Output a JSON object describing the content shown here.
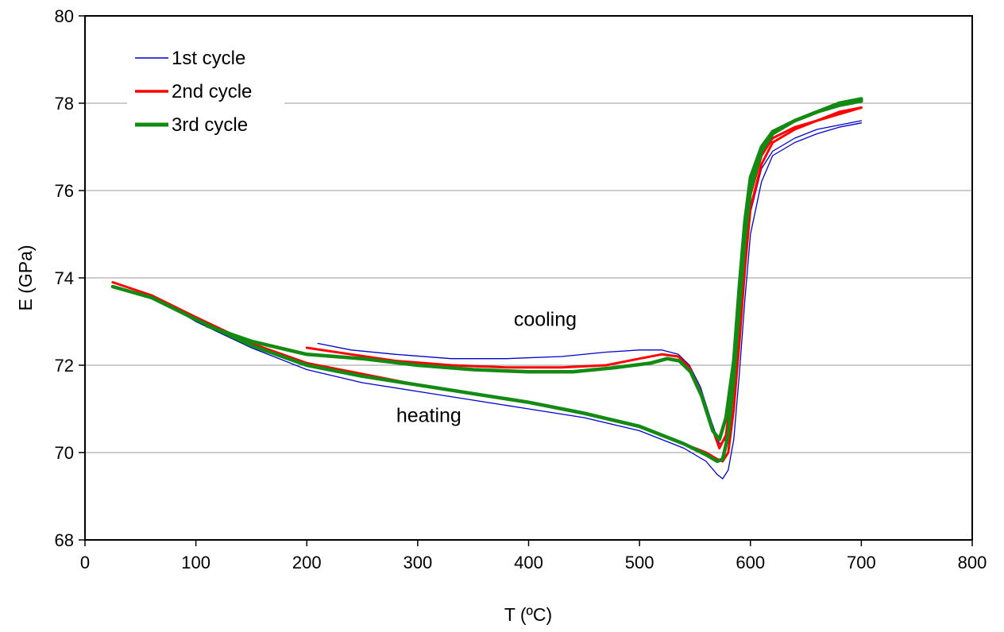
{
  "chart_data": {
    "type": "line",
    "xlabel": "T (ºC)",
    "ylabel": "E (GPa)",
    "xlim": [
      0,
      800
    ],
    "ylim": [
      68,
      80
    ],
    "xticks": [
      0,
      100,
      200,
      300,
      400,
      500,
      600,
      700,
      800
    ],
    "yticks": [
      68,
      70,
      72,
      74,
      76,
      78,
      80
    ],
    "grid": "horizontal",
    "legend_position": "top-left",
    "annotations": [
      {
        "text": "cooling",
        "x": 415,
        "y": 72.9
      },
      {
        "text": "heating",
        "x": 310,
        "y": 70.7
      }
    ],
    "series": [
      {
        "name": "1st cycle",
        "color": "#0000cc",
        "heating": [
          [
            25,
            73.9
          ],
          [
            60,
            73.6
          ],
          [
            100,
            73.0
          ],
          [
            150,
            72.4
          ],
          [
            200,
            71.9
          ],
          [
            250,
            71.6
          ],
          [
            300,
            71.4
          ],
          [
            350,
            71.2
          ],
          [
            400,
            71.0
          ],
          [
            450,
            70.8
          ],
          [
            500,
            70.5
          ],
          [
            540,
            70.1
          ],
          [
            560,
            69.8
          ],
          [
            570,
            69.5
          ],
          [
            575,
            69.4
          ],
          [
            580,
            69.6
          ],
          [
            585,
            70.3
          ],
          [
            590,
            71.8
          ],
          [
            595,
            73.5
          ],
          [
            600,
            75.0
          ],
          [
            610,
            76.2
          ],
          [
            620,
            76.8
          ],
          [
            640,
            77.1
          ],
          [
            660,
            77.3
          ],
          [
            680,
            77.45
          ],
          [
            700,
            77.55
          ]
        ],
        "cooling": [
          [
            700,
            77.6
          ],
          [
            680,
            77.5
          ],
          [
            660,
            77.4
          ],
          [
            640,
            77.2
          ],
          [
            620,
            76.9
          ],
          [
            610,
            76.5
          ],
          [
            600,
            75.5
          ],
          [
            595,
            74.4
          ],
          [
            590,
            72.9
          ],
          [
            585,
            71.5
          ],
          [
            578,
            70.3
          ],
          [
            572,
            70.2
          ],
          [
            565,
            70.7
          ],
          [
            555,
            71.5
          ],
          [
            545,
            72.0
          ],
          [
            535,
            72.25
          ],
          [
            520,
            72.35
          ],
          [
            500,
            72.35
          ],
          [
            470,
            72.3
          ],
          [
            430,
            72.2
          ],
          [
            380,
            72.15
          ],
          [
            330,
            72.15
          ],
          [
            280,
            72.25
          ],
          [
            240,
            72.35
          ],
          [
            210,
            72.5
          ]
        ]
      },
      {
        "name": "2nd cycle",
        "color": "#ff0000",
        "heating": [
          [
            25,
            73.9
          ],
          [
            60,
            73.6
          ],
          [
            100,
            73.1
          ],
          [
            150,
            72.5
          ],
          [
            200,
            72.05
          ],
          [
            250,
            71.8
          ],
          [
            300,
            71.55
          ],
          [
            350,
            71.35
          ],
          [
            400,
            71.15
          ],
          [
            450,
            70.9
          ],
          [
            500,
            70.6
          ],
          [
            540,
            70.2
          ],
          [
            560,
            70.0
          ],
          [
            570,
            69.85
          ],
          [
            575,
            69.8
          ],
          [
            580,
            70.0
          ],
          [
            585,
            71.0
          ],
          [
            590,
            72.5
          ],
          [
            595,
            74.2
          ],
          [
            600,
            75.6
          ],
          [
            610,
            76.6
          ],
          [
            620,
            77.1
          ],
          [
            640,
            77.4
          ],
          [
            660,
            77.6
          ],
          [
            680,
            77.75
          ],
          [
            700,
            77.9
          ]
        ],
        "cooling": [
          [
            700,
            77.9
          ],
          [
            680,
            77.8
          ],
          [
            660,
            77.6
          ],
          [
            640,
            77.45
          ],
          [
            620,
            77.2
          ],
          [
            610,
            76.8
          ],
          [
            600,
            75.9
          ],
          [
            595,
            74.8
          ],
          [
            590,
            73.3
          ],
          [
            585,
            71.8
          ],
          [
            578,
            70.4
          ],
          [
            572,
            70.1
          ],
          [
            565,
            70.6
          ],
          [
            555,
            71.4
          ],
          [
            545,
            71.95
          ],
          [
            535,
            72.2
          ],
          [
            520,
            72.25
          ],
          [
            500,
            72.15
          ],
          [
            470,
            72.0
          ],
          [
            430,
            71.95
          ],
          [
            380,
            71.95
          ],
          [
            330,
            72.0
          ],
          [
            280,
            72.1
          ],
          [
            240,
            72.25
          ],
          [
            200,
            72.4
          ]
        ]
      },
      {
        "name": "3rd cycle",
        "color": "#138a13",
        "heating": [
          [
            25,
            73.8
          ],
          [
            60,
            73.55
          ],
          [
            100,
            73.05
          ],
          [
            150,
            72.45
          ],
          [
            200,
            72.0
          ],
          [
            250,
            71.75
          ],
          [
            300,
            71.55
          ],
          [
            350,
            71.35
          ],
          [
            400,
            71.15
          ],
          [
            450,
            70.9
          ],
          [
            500,
            70.6
          ],
          [
            540,
            70.2
          ],
          [
            560,
            69.95
          ],
          [
            570,
            69.8
          ],
          [
            575,
            69.85
          ],
          [
            580,
            70.4
          ],
          [
            585,
            71.7
          ],
          [
            590,
            73.3
          ],
          [
            595,
            74.9
          ],
          [
            600,
            76.0
          ],
          [
            610,
            76.9
          ],
          [
            620,
            77.3
          ],
          [
            640,
            77.6
          ],
          [
            660,
            77.8
          ],
          [
            680,
            77.95
          ],
          [
            700,
            78.05
          ]
        ],
        "cooling": [
          [
            700,
            78.1
          ],
          [
            680,
            78.0
          ],
          [
            660,
            77.8
          ],
          [
            640,
            77.6
          ],
          [
            620,
            77.35
          ],
          [
            610,
            77.0
          ],
          [
            600,
            76.3
          ],
          [
            595,
            75.3
          ],
          [
            590,
            73.8
          ],
          [
            585,
            72.1
          ],
          [
            578,
            70.8
          ],
          [
            572,
            70.3
          ],
          [
            566,
            70.5
          ],
          [
            556,
            71.3
          ],
          [
            546,
            71.85
          ],
          [
            536,
            72.1
          ],
          [
            525,
            72.15
          ],
          [
            510,
            72.05
          ],
          [
            480,
            71.95
          ],
          [
            440,
            71.85
          ],
          [
            400,
            71.85
          ],
          [
            350,
            71.9
          ],
          [
            300,
            72.0
          ],
          [
            250,
            72.15
          ],
          [
            200,
            72.25
          ],
          [
            150,
            72.55
          ],
          [
            110,
            72.9
          ]
        ]
      }
    ]
  }
}
